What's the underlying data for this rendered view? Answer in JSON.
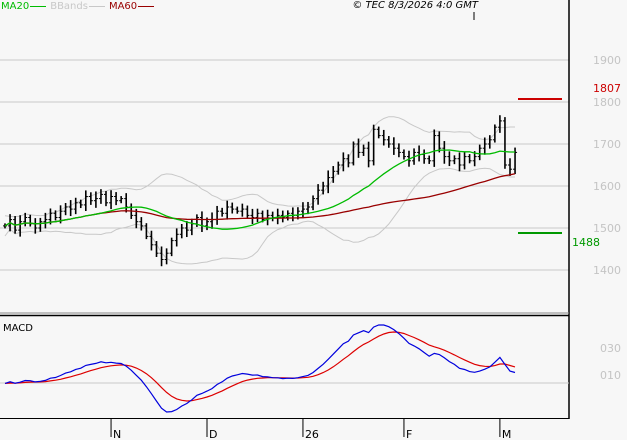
{
  "header": {
    "legend": [
      {
        "label": "MA20",
        "color": "#00bb00"
      },
      {
        "label": "BBands",
        "color": "#c8c8c8"
      },
      {
        "label": "MA60",
        "color": "#990000"
      }
    ],
    "copyright": "© TEC 8/3/2026 4:0 GMT"
  },
  "chart_data": [
    {
      "type": "ohlc",
      "panel": "price",
      "ylim": [
        1340,
        1990
      ],
      "y_ticks": [
        "1900",
        "1800",
        "1700",
        "1600",
        "1500",
        "1400"
      ],
      "y_tick_values": [
        1900,
        1800,
        1700,
        1600,
        1500,
        1400
      ],
      "x_ticks": [
        "N",
        "D",
        "26",
        "F",
        "M"
      ],
      "x_tick_bar_index": [
        21,
        40,
        59,
        79,
        98
      ],
      "close": [
        1505,
        1520,
        1495,
        1515,
        1525,
        1510,
        1500,
        1515,
        1520,
        1535,
        1525,
        1540,
        1550,
        1545,
        1560,
        1555,
        1575,
        1565,
        1570,
        1580,
        1560,
        1575,
        1565,
        1570,
        1550,
        1530,
        1515,
        1505,
        1480,
        1460,
        1440,
        1425,
        1440,
        1470,
        1485,
        1500,
        1495,
        1510,
        1525,
        1505,
        1515,
        1520,
        1540,
        1535,
        1550,
        1545,
        1540,
        1545,
        1530,
        1525,
        1535,
        1520,
        1530,
        1525,
        1530,
        1525,
        1535,
        1530,
        1540,
        1545,
        1550,
        1570,
        1590,
        1600,
        1620,
        1635,
        1650,
        1665,
        1655,
        1700,
        1680,
        1690,
        1660,
        1735,
        1720,
        1710,
        1700,
        1690,
        1680,
        1670,
        1660,
        1680,
        1675,
        1665,
        1660,
        1720,
        1690,
        1670,
        1660,
        1665,
        1650,
        1670,
        1660,
        1670,
        1690,
        1700,
        1710,
        1740,
        1755,
        1650,
        1640,
        1680
      ],
      "indicators": [
        "MA20",
        "BBands",
        "MA60"
      ],
      "levels": [
        {
          "value": "1807",
          "color": "#cc0000"
        },
        {
          "value": "1488",
          "color": "#009900"
        }
      ],
      "grid": true
    },
    {
      "type": "line",
      "panel": "macd",
      "title": "MACD",
      "y_ticks": [
        "030",
        "010"
      ],
      "series_colors": {
        "macd": "#0000dd",
        "signal": "#dd0000"
      }
    }
  ]
}
